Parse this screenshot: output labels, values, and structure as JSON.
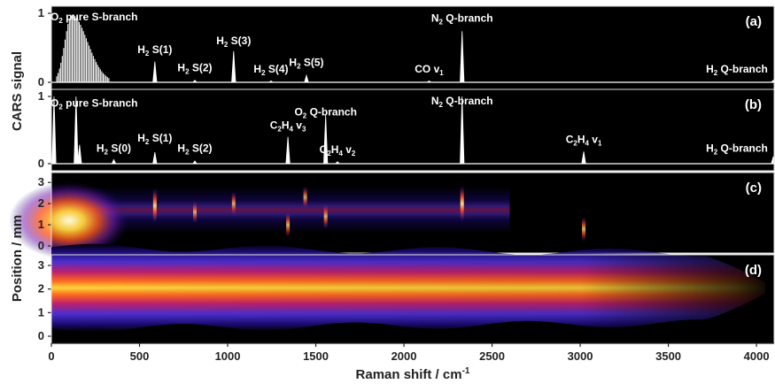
{
  "chart_data": {
    "type": "line",
    "x_axis": {
      "label": "Raman shift / cm",
      "label_sup": "-1",
      "range": [
        0,
        4100
      ],
      "ticks": [
        0,
        500,
        1000,
        1500,
        2000,
        2500,
        3000,
        3500,
        4000
      ],
      "tick_labels": [
        "0",
        "500",
        "1000",
        "1500",
        "2000",
        "2500",
        "3000",
        "3500",
        "4000"
      ]
    },
    "y_label_spectra": "CARS signal",
    "y_label_images": "Position / mm",
    "colors": {
      "panel_bg": "#000000",
      "trace": "#ffffff",
      "frame": "#ffffff",
      "axis_text": "#222222",
      "colormap": [
        "#000000",
        "#1a0a6e",
        "#4b2fd1",
        "#b8207d",
        "#ff3a1f",
        "#ffb81c",
        "#fffbe0"
      ]
    },
    "panels": [
      {
        "id": "(a)",
        "kind": "spectrum",
        "ylim": [
          0,
          1
        ],
        "yticks": [
          "0",
          "1"
        ],
        "rotational_envelope": {
          "x_range": [
            30,
            330
          ],
          "peak_x": 115,
          "peak_value": 0.98,
          "line_spacing": 8
        },
        "peaks": [
          {
            "x": 587,
            "value": 0.3
          },
          {
            "x": 814,
            "value": 0.03
          },
          {
            "x": 1034,
            "value": 0.45
          },
          {
            "x": 1246,
            "value": 0.02
          },
          {
            "x": 1447,
            "value": 0.1
          },
          {
            "x": 2143,
            "value": 0.02
          },
          {
            "x": 2330,
            "value": 0.74
          },
          {
            "x": 4155,
            "value": 0.03
          }
        ],
        "annotations": [
          {
            "text": "N",
            "sub": "2",
            "text2": "/O",
            "sub2": "2",
            "text3": " pure S-branch",
            "x": 120,
            "y": 0.9
          },
          {
            "text": "H",
            "sub": "2",
            "text2": " S(1)",
            "x": 587,
            "y": 0.42
          },
          {
            "text": "H",
            "sub": "2",
            "text2": " S(2)",
            "x": 814,
            "y": 0.16
          },
          {
            "text": "H",
            "sub": "2",
            "text2": " S(3)",
            "x": 1034,
            "y": 0.55
          },
          {
            "text": "H",
            "sub": "2",
            "text2": " S(4)",
            "x": 1246,
            "y": 0.14
          },
          {
            "text": "H",
            "sub": "2",
            "text2": " S(5)",
            "x": 1447,
            "y": 0.24
          },
          {
            "text": "CO v",
            "sub": "1",
            "text2": "",
            "x": 2143,
            "y": 0.14
          },
          {
            "text": "N",
            "sub": "2",
            "text2": " Q-branch",
            "x": 2330,
            "y": 0.88
          },
          {
            "text": "H",
            "sub": "2",
            "text2": " Q-branch",
            "x": 3900,
            "y": 0.14
          }
        ]
      },
      {
        "id": "(b)",
        "kind": "spectrum",
        "ylim": [
          0,
          1
        ],
        "yticks": [
          "0",
          "1"
        ],
        "peaks": [
          {
            "x": 15,
            "value": 1.0
          },
          {
            "x": 140,
            "value": 1.0
          },
          {
            "x": 160,
            "value": 0.28
          },
          {
            "x": 354,
            "value": 0.06
          },
          {
            "x": 587,
            "value": 0.17
          },
          {
            "x": 814,
            "value": 0.04
          },
          {
            "x": 1342,
            "value": 0.4
          },
          {
            "x": 1556,
            "value": 0.72
          },
          {
            "x": 1623,
            "value": 0.03
          },
          {
            "x": 2330,
            "value": 1.0
          },
          {
            "x": 3020,
            "value": 0.18
          },
          {
            "x": 4155,
            "value": 0.1
          }
        ],
        "annotations": [
          {
            "text": "N",
            "sub": "2",
            "text2": "/O",
            "sub2": "2",
            "text3": " pure S-branch",
            "x": 120,
            "y": 0.85
          },
          {
            "text": "H",
            "sub": "2",
            "text2": " S(0)",
            "x": 354,
            "y": 0.18
          },
          {
            "text": "H",
            "sub": "2",
            "text2": " S(1)",
            "x": 587,
            "y": 0.33
          },
          {
            "text": "H",
            "sub": "2",
            "text2": " S(2)",
            "x": 814,
            "y": 0.18
          },
          {
            "text": "C",
            "sub": "2",
            "text2": "H",
            "sub2": "4",
            "text3": " v",
            "sub3": "3",
            "x": 1342,
            "y": 0.52
          },
          {
            "text": "O",
            "sub": "2",
            "text2": " Q-branch",
            "x": 1556,
            "y": 0.72
          },
          {
            "text": "C",
            "sub": "2",
            "text2": "H",
            "sub2": "4",
            "text3": " v",
            "sub3": "2",
            "x": 1623,
            "y": 0.16
          },
          {
            "text": "N",
            "sub": "2",
            "text2": " Q-branch",
            "x": 2330,
            "y": 0.88
          },
          {
            "text": "C",
            "sub": "2",
            "text2": "H",
            "sub2": "4",
            "text3": " v",
            "sub3": "1",
            "x": 3020,
            "y": 0.31
          },
          {
            "text": "H",
            "sub": "2",
            "text2": " Q-branch",
            "x": 3900,
            "y": 0.18
          }
        ]
      },
      {
        "id": "(c)",
        "kind": "image",
        "ylim": [
          0,
          3.3
        ],
        "yticks": [
          "0",
          "1",
          "2",
          "3"
        ],
        "features": [
          {
            "x": 100,
            "y": 1.2,
            "intensity": 1.0
          },
          {
            "x": 587,
            "y": 1.9,
            "intensity": 0.9
          },
          {
            "x": 814,
            "y": 1.6,
            "intensity": 0.5
          },
          {
            "x": 1034,
            "y": 2.0,
            "intensity": 0.55
          },
          {
            "x": 1342,
            "y": 1.0,
            "intensity": 0.6
          },
          {
            "x": 1440,
            "y": 2.3,
            "intensity": 0.5
          },
          {
            "x": 1556,
            "y": 1.4,
            "intensity": 0.6
          },
          {
            "x": 2330,
            "y": 2.0,
            "intensity": 0.95
          },
          {
            "x": 3020,
            "y": 0.8,
            "intensity": 0.6
          },
          {
            "x": 4155,
            "y": 1.2,
            "intensity": 0.6
          }
        ]
      },
      {
        "id": "(d)",
        "kind": "image",
        "ylim": [
          0,
          3.3
        ],
        "yticks": [
          "0",
          "1",
          "2",
          "3"
        ],
        "band": {
          "center": 2.05,
          "x_end": 4050,
          "intensity_start": 1.0,
          "intensity_end": 0.2
        }
      }
    ]
  }
}
